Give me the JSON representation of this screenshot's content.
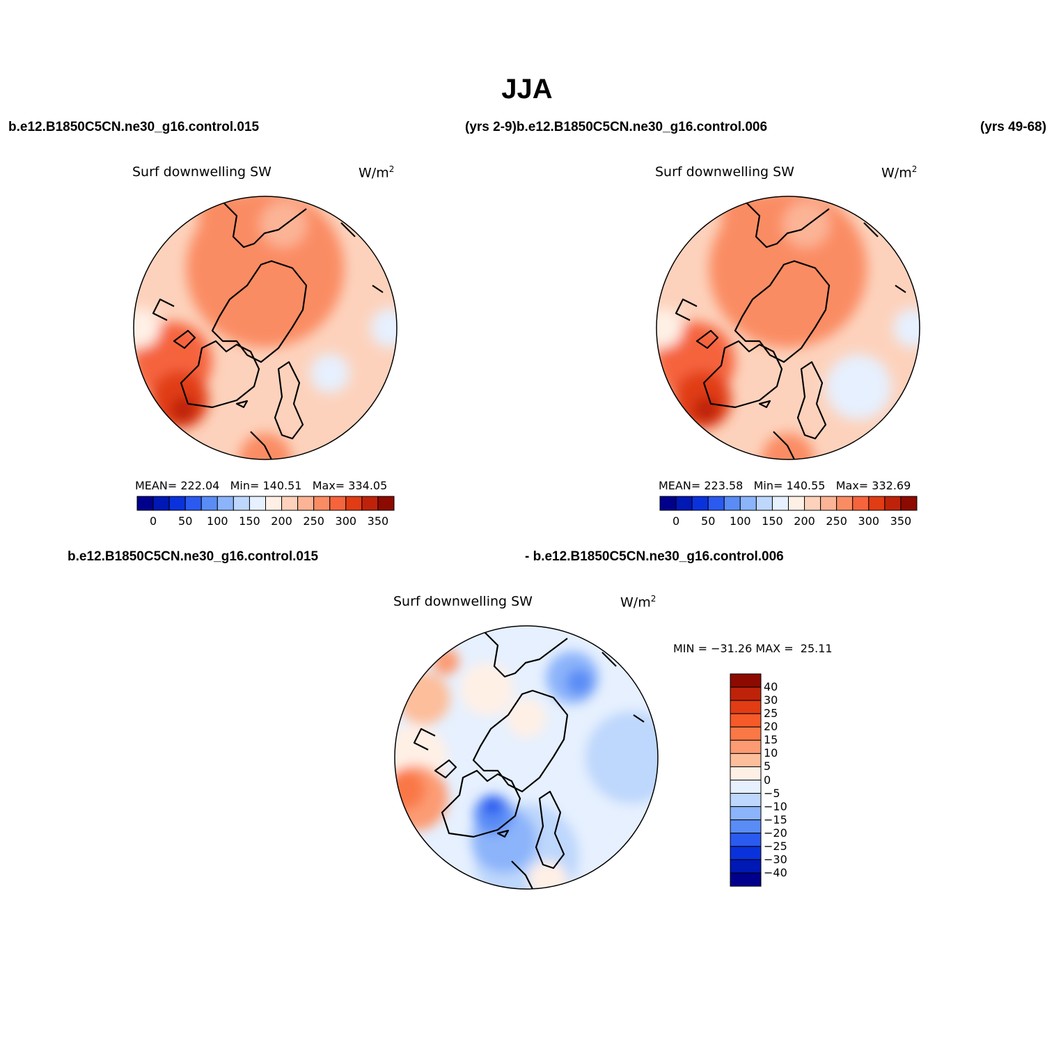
{
  "title": "JJA",
  "headers": {
    "top_left_case": "b.e12.B1850C5CN.ne30_g16.control.015",
    "top_middle": "(yrs 2-9)b.e12.B1850C5CN.ne30_g16.control.006",
    "top_right": "(yrs 49-68)",
    "bottom_left_case": "b.e12.B1850C5CN.ne30_g16.control.015",
    "bottom_right_case": "- b.e12.B1850C5CN.ne30_g16.control.006"
  },
  "panels": [
    {
      "variable": "Surf downwelling SW",
      "units_base": "W/m",
      "units_exp": "2",
      "stats": {
        "mean_label": "MEAN=",
        "mean": "222.04",
        "min_label": "Min=",
        "min": "140.51",
        "max_label": "Max=",
        "max": "334.05"
      }
    },
    {
      "variable": "Surf downwelling SW",
      "units_base": "W/m",
      "units_exp": "2",
      "stats": {
        "mean_label": "MEAN=",
        "mean": "223.58",
        "min_label": "Min=",
        "min": "140.55",
        "max_label": "Max=",
        "max": "332.69"
      }
    },
    {
      "variable": "Surf downwelling SW",
      "units_base": "W/m",
      "units_exp": "2",
      "stats": {
        "min_label": "MIN =",
        "min": "−31.26",
        "max_label": "MAX =",
        "max": "25.11"
      }
    }
  ],
  "colorbar_abs": {
    "colors": [
      "#00008c",
      "#0018b4",
      "#0a32dc",
      "#2a5af0",
      "#5a8cf5",
      "#8cb4fa",
      "#bed7fc",
      "#e6f0fe",
      "#fff0e6",
      "#fdd2bc",
      "#fcb496",
      "#fa8c64",
      "#f5643c",
      "#e13c14",
      "#be230a",
      "#8c0a00"
    ],
    "labels": [
      "0",
      "50",
      "100",
      "150",
      "200",
      "250",
      "300",
      "350"
    ]
  },
  "colorbar_diff": {
    "colors": [
      "#8c0a00",
      "#be230a",
      "#e13c14",
      "#f55a28",
      "#fa7846",
      "#fc9b73",
      "#fdbe9b",
      "#fff0e6",
      "#e6f0fe",
      "#bed7fc",
      "#8cb4fa",
      "#5a8cf5",
      "#2a5af0",
      "#0a32dc",
      "#0018b4",
      "#00008c"
    ],
    "labels": [
      "40",
      "30",
      "25",
      "20",
      "15",
      "10",
      "5",
      "0",
      "−5",
      "−10",
      "−15",
      "−20",
      "−25",
      "−30",
      "−40"
    ]
  },
  "map_fields": {
    "abs_1": {
      "base": "#fdd2bc",
      "blobs": [
        {
          "lon": 0,
          "lat": 0.45,
          "r": 0.6,
          "color": "#fa8c64"
        },
        {
          "lon": 250,
          "lat": 0.75,
          "r": 0.3,
          "color": "#f5643c"
        },
        {
          "lon": 230,
          "lat": 0.85,
          "r": 0.22,
          "color": "#e13c14"
        },
        {
          "lon": 225,
          "lat": 0.88,
          "r": 0.1,
          "color": "#be230a"
        },
        {
          "lon": 90,
          "lat": 0.95,
          "r": 0.15,
          "color": "#e6f0fe"
        },
        {
          "lon": 125,
          "lat": 0.6,
          "r": 0.15,
          "color": "#e6f0fe"
        },
        {
          "lon": 180,
          "lat": 1.0,
          "r": 0.2,
          "color": "#fa8c64"
        },
        {
          "lon": 340,
          "lat": 0.9,
          "r": 0.2,
          "color": "#fa8c64"
        },
        {
          "lon": 270,
          "lat": 0.95,
          "r": 0.15,
          "color": "#fff0e6"
        },
        {
          "lon": 10,
          "lat": 0.8,
          "r": 0.18,
          "color": "#fcb496"
        }
      ]
    },
    "abs_2": {
      "base": "#fdd2bc",
      "blobs": [
        {
          "lon": 0,
          "lat": 0.45,
          "r": 0.6,
          "color": "#fa8c64"
        },
        {
          "lon": 250,
          "lat": 0.75,
          "r": 0.3,
          "color": "#f5643c"
        },
        {
          "lon": 230,
          "lat": 0.85,
          "r": 0.22,
          "color": "#e13c14"
        },
        {
          "lon": 225,
          "lat": 0.88,
          "r": 0.1,
          "color": "#be230a"
        },
        {
          "lon": 90,
          "lat": 0.95,
          "r": 0.15,
          "color": "#e6f0fe"
        },
        {
          "lon": 130,
          "lat": 0.7,
          "r": 0.25,
          "color": "#e6f0fe"
        },
        {
          "lon": 180,
          "lat": 1.0,
          "r": 0.2,
          "color": "#fa8c64"
        },
        {
          "lon": 340,
          "lat": 0.9,
          "r": 0.2,
          "color": "#fa8c64"
        },
        {
          "lon": 270,
          "lat": 0.95,
          "r": 0.15,
          "color": "#fff0e6"
        },
        {
          "lon": 10,
          "lat": 0.8,
          "r": 0.18,
          "color": "#fcb496"
        }
      ]
    },
    "diff": {
      "base": "#e6f0fe",
      "blobs": [
        {
          "lon": 180,
          "lat": 0.75,
          "r": 0.4,
          "color": "#bed7fc"
        },
        {
          "lon": 195,
          "lat": 0.65,
          "r": 0.25,
          "color": "#8cb4fa"
        },
        {
          "lon": 210,
          "lat": 0.5,
          "r": 0.15,
          "color": "#5a8cf5"
        },
        {
          "lon": 215,
          "lat": 0.45,
          "r": 0.07,
          "color": "#2a5af0"
        },
        {
          "lon": 30,
          "lat": 0.7,
          "r": 0.2,
          "color": "#8cb4fa"
        },
        {
          "lon": 35,
          "lat": 0.7,
          "r": 0.1,
          "color": "#5a8cf5"
        },
        {
          "lon": 90,
          "lat": 0.8,
          "r": 0.35,
          "color": "#bed7fc"
        },
        {
          "lon": 270,
          "lat": 0.85,
          "r": 0.25,
          "color": "#fff0e6"
        },
        {
          "lon": 300,
          "lat": 0.9,
          "r": 0.2,
          "color": "#fdbe9b"
        },
        {
          "lon": 320,
          "lat": 0.95,
          "r": 0.1,
          "color": "#fc9b73"
        },
        {
          "lon": 250,
          "lat": 0.9,
          "r": 0.25,
          "color": "#fc9b73"
        },
        {
          "lon": 255,
          "lat": 0.95,
          "r": 0.15,
          "color": "#fa7846"
        },
        {
          "lon": 170,
          "lat": 0.95,
          "r": 0.15,
          "color": "#fff0e6"
        },
        {
          "lon": 330,
          "lat": 0.6,
          "r": 0.2,
          "color": "#fff0e6"
        },
        {
          "lon": 0,
          "lat": 0.3,
          "r": 0.15,
          "color": "#fff0e6"
        }
      ]
    }
  }
}
